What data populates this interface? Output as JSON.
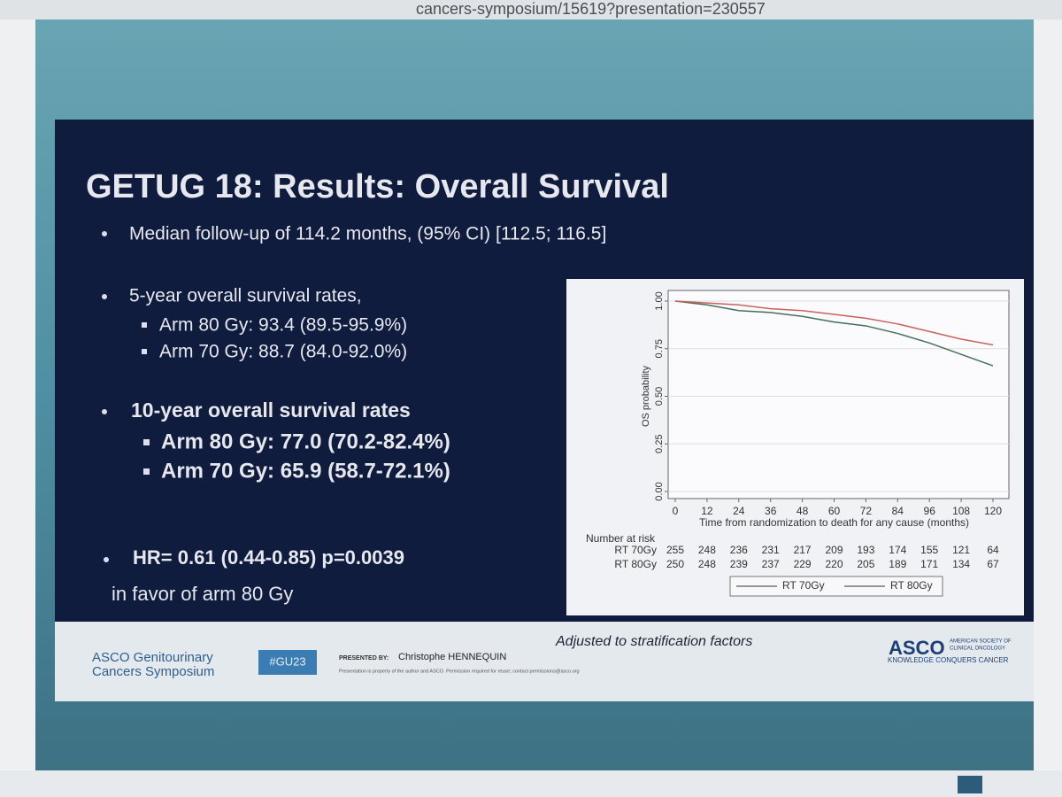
{
  "browser": {
    "url": "cancers-symposium/15619?presentation=230557"
  },
  "slide": {
    "title": "GETUG 18: Results: Overall Survival",
    "followup": "Median follow-up of 114.2 months, (95% CI) [112.5; 116.5]",
    "five_year": {
      "heading": "5-year overall survival rates,",
      "items": [
        "Arm 80 Gy: 93.4 (89.5-95.9%)",
        "Arm 70 Gy: 88.7 (84.0-92.0%)"
      ]
    },
    "ten_year": {
      "heading": "10-year overall survival rates",
      "items": [
        "Arm 80 Gy: 77.0 (70.2-82.4%)",
        "Arm 70 Gy: 65.9 (58.7-72.1%)"
      ]
    },
    "hr": "HR= 0.61 (0.44-0.85) p=0.0039",
    "hr_note": "in favor of arm 80 Gy",
    "note": "Adjusted to stratification factors"
  },
  "chart_data": {
    "type": "line",
    "ylabel": "OS probability",
    "xlabel": "Time from randomization to death for any cause (months)",
    "x": [
      0,
      12,
      24,
      36,
      48,
      60,
      72,
      84,
      96,
      108,
      120
    ],
    "series": [
      {
        "name": "RT 70Gy",
        "color": "#44705a",
        "values": [
          1.0,
          0.98,
          0.95,
          0.94,
          0.92,
          0.89,
          0.87,
          0.83,
          0.78,
          0.72,
          0.66
        ]
      },
      {
        "name": "RT 80Gy",
        "color": "#c9625e",
        "values": [
          1.0,
          0.99,
          0.98,
          0.96,
          0.95,
          0.93,
          0.91,
          0.88,
          0.84,
          0.8,
          0.77
        ]
      }
    ],
    "xlim": [
      0,
      120
    ],
    "xticks": [
      0,
      12,
      24,
      36,
      48,
      60,
      72,
      84,
      96,
      108,
      120
    ],
    "ylim": [
      0,
      1
    ],
    "yticks": [
      {
        "value": 0,
        "label": "0.00"
      },
      {
        "value": 0.25,
        "label": "0.25"
      },
      {
        "value": 0.5,
        "label": "0.50"
      },
      {
        "value": 0.75,
        "label": "0.75"
      },
      {
        "value": 1,
        "label": "1.00"
      }
    ],
    "grid": true,
    "risk_table": {
      "title": "Number at risk",
      "rows": [
        {
          "name": "RT 70Gy",
          "values": [
            255,
            248,
            236,
            231,
            217,
            209,
            193,
            174,
            155,
            121,
            64
          ]
        },
        {
          "name": "RT 80Gy",
          "values": [
            250,
            248,
            239,
            237,
            229,
            220,
            205,
            189,
            171,
            134,
            67
          ]
        }
      ]
    }
  },
  "footer": {
    "symposium": [
      "ASCO Genitourinary",
      "Cancers Symposium"
    ],
    "hashtag": "#GU23",
    "presented_by": "PRESENTED BY:",
    "presenter": "Christophe HENNEQUIN",
    "permission": "Presentation is property of the author and ASCO. Permission required for reuse; contact permissions@asco.org",
    "asco": "ASCO",
    "society": [
      "AMERICAN SOCIETY OF",
      "CLINICAL ONCOLOGY"
    ],
    "tagline": "KNOWLEDGE CONQUERS CANCER"
  }
}
